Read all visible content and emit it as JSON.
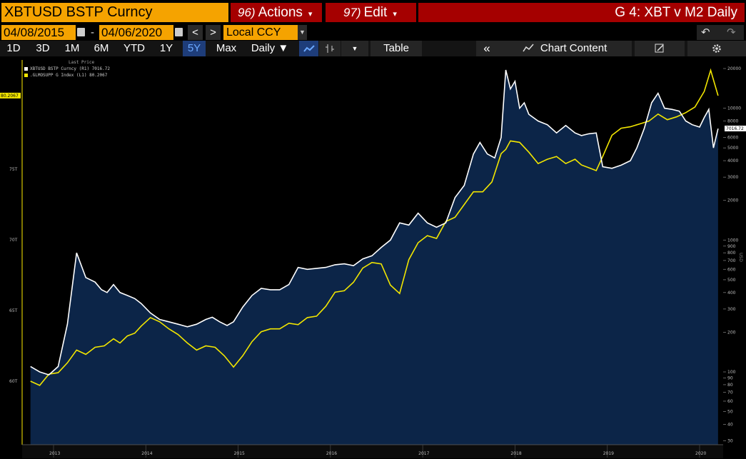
{
  "toolbar": {
    "ticker": "XBTUSD BSTP Curncy",
    "actions_num": "96)",
    "actions_label": "Actions",
    "edit_num": "97)",
    "edit_label": "Edit",
    "title": "G 4: XBT v M2 Daily"
  },
  "range": {
    "start": "04/08/2015",
    "end": "04/06/2020",
    "dash": "-",
    "prev": "<",
    "next": ">",
    "currency": "Local CCY",
    "undo": "↶",
    "redo": "↷"
  },
  "periods": [
    "1D",
    "3D",
    "1M",
    "6M",
    "YTD",
    "1Y",
    "5Y",
    "Max"
  ],
  "active_period": "5Y",
  "controls": {
    "frequency": "Daily ▼",
    "table": "Table",
    "collapse": "«",
    "chart_content": "Chart Content"
  },
  "legend": {
    "header": "Last Price",
    "series1": "XBTUSD BSTP Curncy  (R1) 7016.72",
    "series2": ".GLMOSUPP G Index  (L1) 80.2067"
  },
  "colors": {
    "accent_orange": "#f5a300",
    "red_button": "#a50000",
    "area_fill": "#0c2548",
    "series1": "#ffffff",
    "series2": "#f2e600"
  },
  "chart_data": {
    "type": "line",
    "x_ticks": [
      "2013",
      "2014",
      "2015",
      "2016",
      "2017",
      "2018",
      "2019",
      "2020"
    ],
    "left_axis_ticks": [
      "80T",
      "75T",
      "70T",
      "65T",
      "60T"
    ],
    "right_axis_ticks": [
      "20000",
      "10000",
      "8000",
      "6000",
      "5000",
      "4000",
      "3000",
      "2000",
      "1000",
      "900",
      "800",
      "700",
      "600",
      "500",
      "400",
      "300",
      "200",
      "100",
      "90",
      "80",
      "70",
      "60",
      "50",
      "40",
      "30"
    ],
    "left_last_label": "80.2067",
    "right_last_label": "7016.72",
    "right_axis_title": "USD",
    "series": [
      {
        "name": "XBTUSD BSTP Curncy",
        "axis": "right",
        "x": [
          2012.75,
          2012.85,
          2012.95,
          2013.05,
          2013.15,
          2013.25,
          2013.35,
          2013.45,
          2013.52,
          2013.58,
          2013.65,
          2013.72,
          2013.8,
          2013.88,
          2013.95,
          2014.05,
          2014.15,
          2014.25,
          2014.35,
          2014.45,
          2014.55,
          2014.65,
          2014.72,
          2014.8,
          2014.88,
          2014.95,
          2015.05,
          2015.15,
          2015.25,
          2015.35,
          2015.45,
          2015.55,
          2015.65,
          2015.75,
          2015.85,
          2015.95,
          2016.05,
          2016.15,
          2016.25,
          2016.35,
          2016.45,
          2016.55,
          2016.65,
          2016.75,
          2016.85,
          2016.95,
          2017.05,
          2017.15,
          2017.25,
          2017.35,
          2017.45,
          2017.55,
          2017.62,
          2017.7,
          2017.78,
          2017.85,
          2017.9,
          2017.95,
          2018.0,
          2018.05,
          2018.1,
          2018.15,
          2018.25,
          2018.35,
          2018.45,
          2018.55,
          2018.65,
          2018.72,
          2018.8,
          2018.88,
          2018.95,
          2019.05,
          2019.15,
          2019.25,
          2019.32,
          2019.4,
          2019.48,
          2019.55,
          2019.62,
          2019.7,
          2019.78,
          2019.85,
          2019.92,
          2020.0,
          2020.05,
          2020.1,
          2020.15,
          2020.2
        ],
        "values": [
          110,
          100,
          95,
          110,
          230,
          800,
          520,
          480,
          420,
          400,
          460,
          400,
          380,
          360,
          330,
          280,
          250,
          240,
          230,
          220,
          230,
          250,
          260,
          240,
          225,
          240,
          310,
          380,
          430,
          420,
          420,
          460,
          620,
          600,
          610,
          620,
          650,
          660,
          640,
          720,
          760,
          880,
          1000,
          1350,
          1300,
          1600,
          1350,
          1250,
          1350,
          2100,
          2600,
          4500,
          5500,
          4500,
          4200,
          6000,
          19500,
          14000,
          16000,
          10000,
          11000,
          9000,
          8000,
          7500,
          6500,
          7400,
          6500,
          6200,
          6400,
          6500,
          3600,
          3500,
          3700,
          4000,
          5000,
          7000,
          11000,
          13000,
          10000,
          9800,
          9500,
          8000,
          7500,
          7200,
          8500,
          9800,
          5000,
          7000
        ]
      },
      {
        "name": ".GLMOSUPP G Index",
        "axis": "left",
        "x": [
          2012.75,
          2012.85,
          2012.95,
          2013.05,
          2013.15,
          2013.25,
          2013.35,
          2013.45,
          2013.55,
          2013.65,
          2013.72,
          2013.8,
          2013.88,
          2013.95,
          2014.05,
          2014.15,
          2014.25,
          2014.35,
          2014.45,
          2014.55,
          2014.65,
          2014.75,
          2014.85,
          2014.95,
          2015.05,
          2015.15,
          2015.25,
          2015.35,
          2015.45,
          2015.55,
          2015.65,
          2015.75,
          2015.85,
          2015.95,
          2016.05,
          2016.15,
          2016.25,
          2016.35,
          2016.45,
          2016.55,
          2016.65,
          2016.75,
          2016.85,
          2016.95,
          2017.05,
          2017.15,
          2017.25,
          2017.35,
          2017.45,
          2017.55,
          2017.65,
          2017.75,
          2017.85,
          2017.9,
          2017.95,
          2018.05,
          2018.15,
          2018.25,
          2018.35,
          2018.45,
          2018.55,
          2018.65,
          2018.72,
          2018.8,
          2018.88,
          2018.95,
          2019.05,
          2019.15,
          2019.25,
          2019.35,
          2019.45,
          2019.55,
          2019.65,
          2019.75,
          2019.85,
          2019.95,
          2020.05,
          2020.12,
          2020.2
        ],
        "values": [
          60.0,
          59.7,
          60.5,
          60.6,
          61.3,
          62.2,
          61.9,
          62.4,
          62.5,
          63.0,
          62.7,
          63.2,
          63.4,
          63.9,
          64.5,
          64.2,
          63.7,
          63.3,
          62.7,
          62.2,
          62.5,
          62.4,
          61.8,
          61.0,
          61.8,
          62.8,
          63.5,
          63.7,
          63.7,
          64.1,
          64.0,
          64.5,
          64.6,
          65.3,
          66.3,
          66.4,
          67.0,
          68.0,
          68.4,
          68.3,
          66.8,
          66.2,
          68.6,
          69.8,
          70.3,
          70.1,
          71.3,
          71.6,
          72.5,
          73.4,
          73.4,
          74.1,
          76.1,
          76.4,
          77.0,
          76.9,
          76.2,
          75.4,
          75.7,
          75.9,
          75.4,
          75.7,
          75.3,
          75.1,
          74.9,
          75.9,
          77.4,
          77.9,
          78.0,
          78.2,
          78.4,
          78.9,
          78.5,
          78.7,
          79.0,
          79.4,
          80.5,
          82.0,
          80.2
        ]
      }
    ]
  }
}
